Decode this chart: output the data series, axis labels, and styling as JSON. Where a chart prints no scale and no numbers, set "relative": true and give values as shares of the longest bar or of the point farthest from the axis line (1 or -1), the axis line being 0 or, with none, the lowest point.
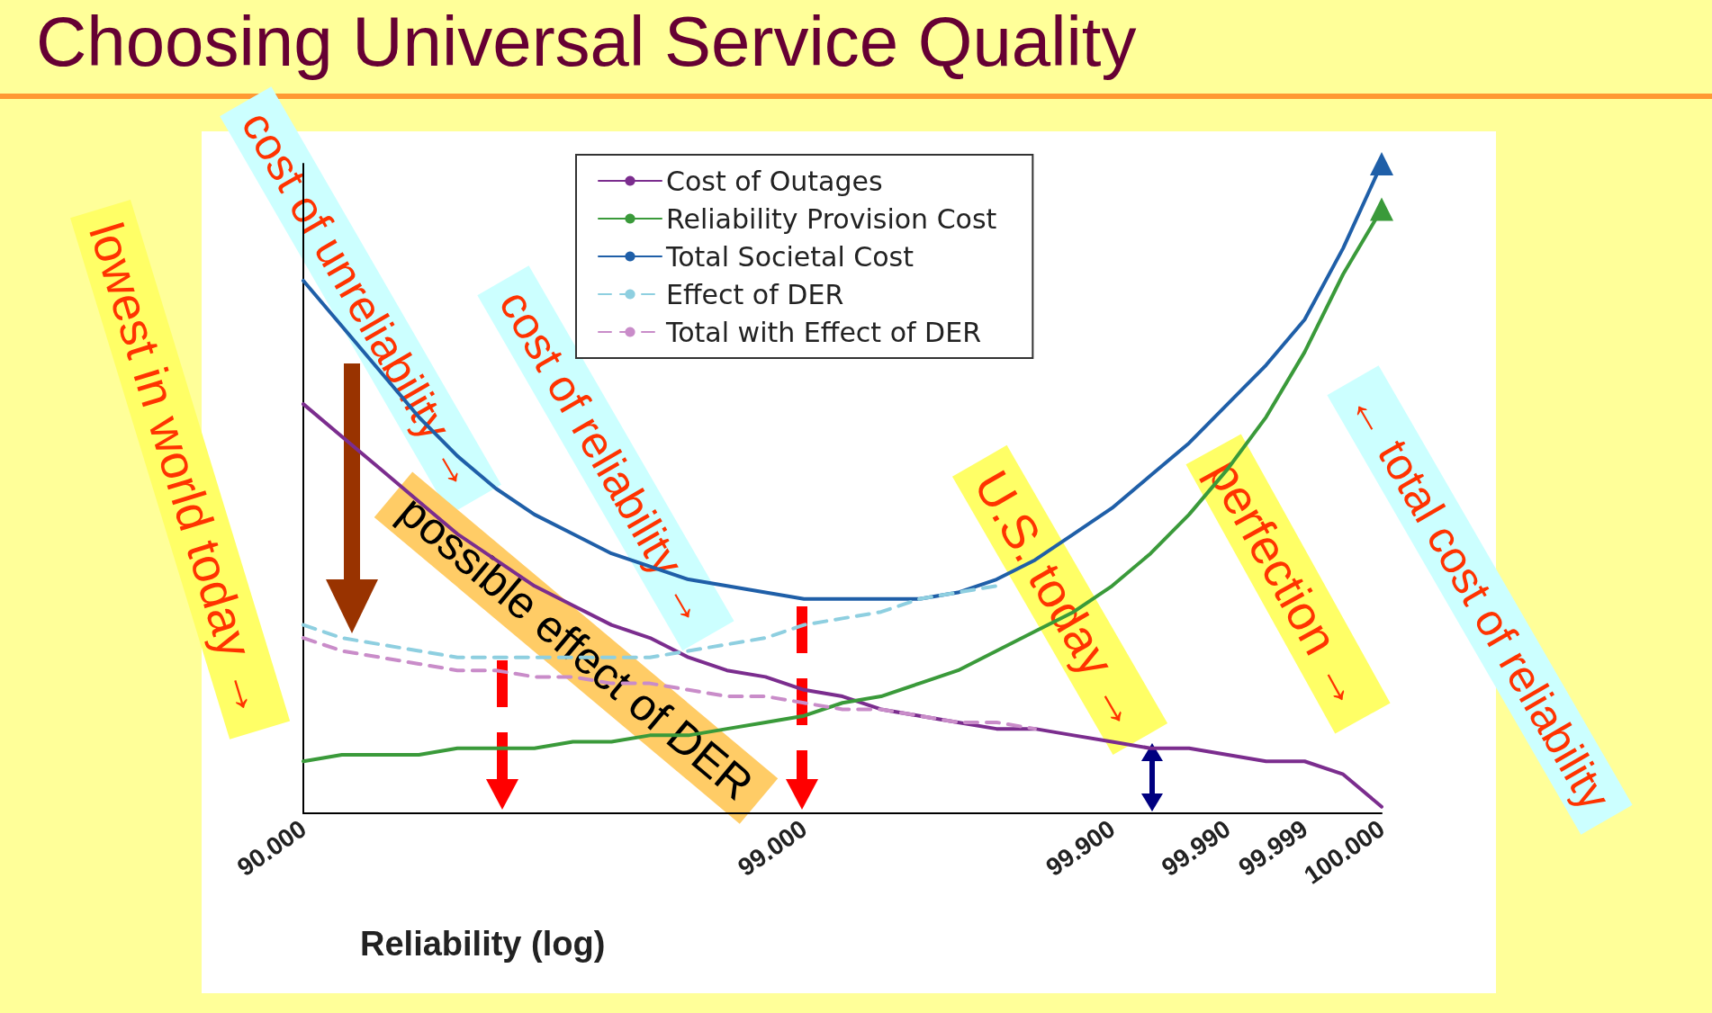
{
  "chart_data": {
    "type": "line",
    "title": "Choosing Universal Service Quality",
    "xlabel": "Reliability (log)",
    "relative": true,
    "legend": "top",
    "grid": false,
    "marker": "none",
    "categories": [
      "90.000",
      null,
      null,
      null,
      null,
      null,
      null,
      null,
      null,
      null,
      null,
      null,
      null,
      "99.000",
      null,
      null,
      null,
      null,
      null,
      null,
      null,
      "99.900",
      null,
      null,
      "99.990",
      null,
      "99.999",
      null,
      "100.000"
    ],
    "series": [
      {
        "name": "Cost of Outages",
        "color": "#7b2d8e",
        "line_style": "solid",
        "values": [
          0.63,
          0.58,
          0.53,
          0.48,
          0.43,
          0.39,
          0.35,
          0.32,
          0.29,
          0.27,
          0.24,
          0.22,
          0.21,
          0.19,
          0.18,
          0.16,
          0.15,
          0.14,
          0.13,
          0.13,
          0.12,
          0.11,
          0.1,
          0.1,
          0.09,
          0.08,
          0.08,
          0.06,
          0.01
        ]
      },
      {
        "name": "Reliability Provision Cost",
        "color": "#3a9a3a",
        "line_style": "solid",
        "values": [
          0.08,
          0.09,
          0.09,
          0.09,
          0.1,
          0.1,
          0.1,
          0.11,
          0.11,
          0.12,
          0.12,
          0.13,
          0.14,
          0.15,
          0.17,
          0.18,
          0.2,
          0.22,
          0.25,
          0.28,
          0.31,
          0.35,
          0.4,
          0.46,
          0.53,
          0.61,
          0.71,
          0.83,
          0.93
        ]
      },
      {
        "name": "Total Societal Cost",
        "color": "#1f5fa8",
        "line_style": "solid",
        "values": [
          0.82,
          0.75,
          0.68,
          0.61,
          0.55,
          0.5,
          0.46,
          0.43,
          0.4,
          0.38,
          0.36,
          0.35,
          0.34,
          0.33,
          0.33,
          0.33,
          0.33,
          0.34,
          0.36,
          0.39,
          0.43,
          0.47,
          0.52,
          0.57,
          0.63,
          0.69,
          0.76,
          0.87,
          1
        ]
      },
      {
        "name": "Effect of DER",
        "color": "#8ecfe0",
        "line_style": "dashed",
        "values": [
          0.29,
          0.27,
          0.26,
          0.25,
          0.24,
          0.24,
          0.24,
          0.24,
          0.24,
          0.24,
          0.25,
          0.26,
          0.27,
          0.29,
          0.3,
          0.31,
          0.33,
          0.34,
          0.35,
          null,
          null,
          null,
          null,
          null,
          null,
          null,
          null,
          null,
          null
        ]
      },
      {
        "name": "Total with Effect of DER",
        "color": "#c98cc9",
        "line_style": "dashed",
        "values": [
          0.27,
          0.25,
          0.24,
          0.23,
          0.22,
          0.22,
          0.21,
          0.21,
          0.2,
          0.2,
          0.19,
          0.18,
          0.18,
          0.17,
          0.16,
          0.16,
          0.15,
          0.14,
          0.14,
          0.13,
          null,
          null,
          null,
          null,
          null,
          null,
          null,
          null,
          null
        ]
      }
    ],
    "annotations": [
      "lowest in world today →",
      "cost of unreliability →",
      "cost of reliability →",
      "possible effect of DER",
      "U.S. today →",
      "perfection →",
      "← total cost of reliability"
    ]
  }
}
